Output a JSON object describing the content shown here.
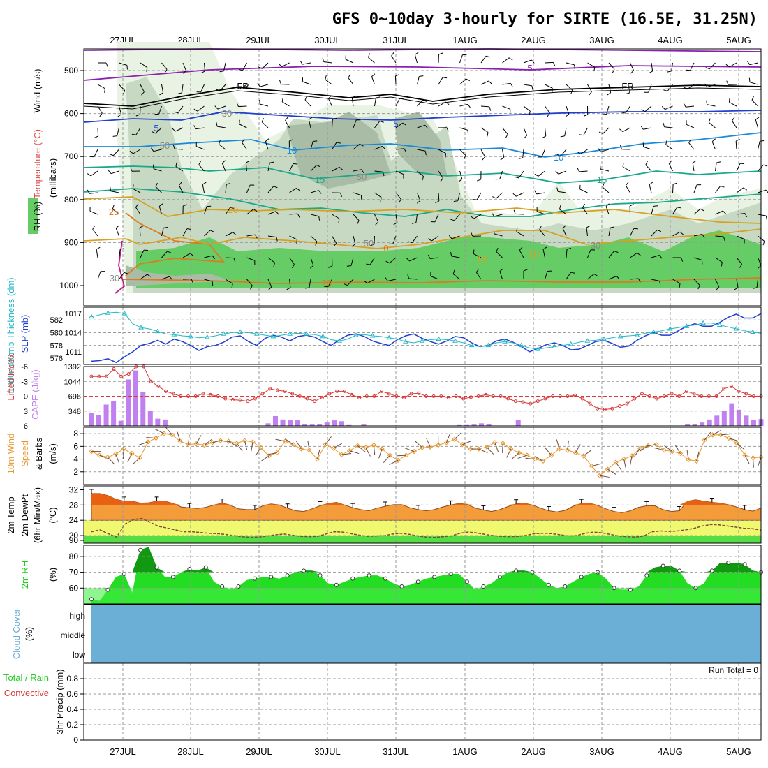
{
  "title": "GFS 0~10day 3-hourly for SIRTE (16.5E, 31.25N)",
  "dates": [
    "27JUL",
    "28JUL",
    "29JUL",
    "30JUL",
    "31JUL",
    "1AUG",
    "2AUG",
    "3AUG",
    "4AUG",
    "5AUG"
  ],
  "colors": {
    "frame": "#000000",
    "grid": "#999999",
    "rh_light": "#e8f3e3",
    "rh_mid": "#c7d9c2",
    "rh_dark": "#a9bca6",
    "rh_green": "#66cc66",
    "t_neg10": "#8a1fb0",
    "t_neg5": "#1f3fd0",
    "t_0": "#000000",
    "t_5": "#1a4fd8",
    "t_10": "#1a8ad8",
    "t_15": "#1aa88a",
    "t_20": "#d8a020",
    "t_25": "#e07820",
    "t_30": "#c01880",
    "slp": "#1f3fd0",
    "thickness": "#22b8c8",
    "lifted": "#d83a3a",
    "cape": "#c080f0",
    "wind": "#e89830",
    "temp_orange": "#f49c3a",
    "temp_dark": "#e86010",
    "yellow": "#f0f870",
    "rh2m_green": "#22dd22",
    "rh2m_dark": "#119911",
    "cloud": "#6baed6"
  },
  "panel1": {
    "label_wind": "Wind (m/s)",
    "label_temp": "Temperature (°C)",
    "label_rh": "RH (%)",
    "label_mb": "(millibars)",
    "yticks": [
      "500",
      "600",
      "700",
      "800",
      "900",
      "1000"
    ],
    "labels": [
      "5",
      "FR",
      "FR",
      "5",
      "5",
      "10",
      "10",
      "15",
      "15",
      "20",
      "25",
      "0",
      "10",
      "20",
      "10",
      "30",
      "30",
      "50",
      "50",
      "50",
      "30"
    ]
  },
  "panel2": {
    "label_thick": "1000-500mb Thickness (dm)",
    "label_slp": "SLP (mb)",
    "ticks_left": [
      "582",
      "580",
      "578",
      "576"
    ],
    "ticks_right": [
      "1017",
      "1014",
      "1011"
    ]
  },
  "panel3": {
    "label_li": "Lifted Index",
    "label_cape": "CAPE (J/kg)",
    "ticks_left": [
      "-6",
      "-3",
      "0",
      "3",
      "6"
    ],
    "ticks_right": [
      "1392",
      "1044",
      "696",
      "348"
    ]
  },
  "panel4": {
    "label_1": "10m Wind",
    "label_2": "Speed",
    "label_3": "& Barbs",
    "label_unit": "(m/s)",
    "ticks": [
      "8",
      "6",
      "4",
      "2"
    ]
  },
  "panel5": {
    "label_1": "2m Temp",
    "label_2": "2m DewPt",
    "label_3": "(6hr Min/Max)",
    "label_unit": "(°C)",
    "ticks": [
      "32",
      "28",
      "24",
      "20",
      "90"
    ]
  },
  "panel6": {
    "label": "2m RH",
    "label_unit": "(%)",
    "ticks": [
      "80",
      "70",
      "60"
    ]
  },
  "panel7": {
    "label": "Cloud Cover",
    "label_unit": "(%)",
    "levels": [
      "high",
      "middle",
      "low"
    ]
  },
  "panel8": {
    "label_1": "Total / Rain",
    "label_2": "Convective",
    "label_3": "3hr Precip (mm)",
    "ticks": [
      "0.8",
      "0.6",
      "0.4",
      "0.2",
      "0"
    ],
    "run_total": "Run Total = 0"
  },
  "chart_data": [
    {
      "type": "line",
      "name": "upper-air cross section",
      "ylabel": "(millibars)",
      "ylim": [
        1000,
        450
      ],
      "yticks": [
        500,
        600,
        700,
        800,
        900,
        1000
      ]
    },
    {
      "type": "line",
      "ylim_left": [
        575,
        584
      ],
      "ylim_right": [
        1009,
        1018
      ],
      "series": [
        {
          "name": "SLP (mb)",
          "values": [
            1009.5,
            1009.6,
            1009.9,
            1009.3,
            1010.2,
            1011.0,
            1012.0,
            1012.3,
            1012.8,
            1012.2,
            1013.0,
            1012.6,
            1012.0,
            1011.2,
            1011.8,
            1012.0,
            1012.5,
            1013.3,
            1013.5,
            1012.6,
            1012.0,
            1013.1,
            1013.6,
            1013.3,
            1012.7,
            1013.4,
            1013.6,
            1013.3,
            1012.6,
            1012.0,
            1012.9,
            1013.6,
            1013.8,
            1013.4,
            1012.7,
            1012.3,
            1012.0,
            1012.9,
            1013.5,
            1013.8,
            1013.1,
            1012.6,
            1012.2,
            1012.7,
            1013.4,
            1013.2,
            1012.4,
            1011.8,
            1012.0,
            1012.7,
            1013.0,
            1012.5,
            1011.8,
            1011.0,
            1011.5,
            1012.1,
            1012.4,
            1012.0,
            1011.3,
            1011.4,
            1012.0,
            1012.6,
            1012.8,
            1012.3,
            1011.7,
            1011.9,
            1012.8,
            1013.5,
            1014.0,
            1013.6,
            1013.6,
            1014.3,
            1015.0,
            1015.4,
            1015.0,
            1015.0,
            1015.6,
            1016.4,
            1016.9,
            1016.3,
            1016.3,
            1017.0
          ]
        },
        {
          "name": "1000-500mb Thickness (dm)",
          "values": [
            582.5,
            582.8,
            583.1,
            583.2,
            583.0,
            581.4,
            580.8,
            580.6,
            580.2,
            579.8,
            579.7,
            579.5,
            579.4,
            579.2,
            579.3,
            579.5,
            579.8,
            580.0,
            580.1,
            580.0,
            579.8,
            579.6,
            579.4,
            579.6,
            579.8,
            579.9,
            579.8,
            579.7,
            579.4,
            578.9,
            578.7,
            579.0,
            579.6,
            579.7,
            579.5,
            579.4,
            579.2,
            579.0,
            578.6,
            578.4,
            578.7,
            578.9,
            579.0,
            578.9,
            578.7,
            578.4,
            578.0,
            577.8,
            578.0,
            578.4,
            578.6,
            578.4,
            578.0,
            577.6,
            577.4,
            577.6,
            577.8,
            578.0,
            578.2,
            578.5,
            578.7,
            578.8,
            579.0,
            579.2,
            579.4,
            579.5,
            579.6,
            579.9,
            580.1,
            580.3,
            580.6,
            580.8,
            581.0,
            581.2,
            581.5,
            581.5,
            581.2,
            580.9,
            580.6,
            580.3,
            580.1,
            579.9
          ]
        }
      ]
    },
    {
      "type": "bar",
      "ylim_left": [
        -6,
        6
      ],
      "ylim_right": [
        0,
        1392
      ],
      "series": [
        {
          "name": "Lifted Index",
          "values": [
            -4,
            -4,
            -4,
            -5.5,
            -4,
            -4.5,
            -6,
            -6,
            -3,
            -2,
            -1,
            -0.5,
            0,
            0,
            0,
            -0.5,
            -0.3,
            0,
            0.5,
            0.7,
            0.8,
            1.0,
            0.5,
            -0.5,
            -1.5,
            -1.2,
            -1.0,
            -0.5,
            0,
            0.5,
            1.0,
            0.3,
            -0.5,
            -1,
            -1,
            -0.3,
            0.3,
            0,
            0,
            -1,
            -0.5,
            0,
            0.3,
            -0.5,
            -0.6,
            0,
            0,
            0,
            0.3,
            0,
            0.5,
            0.2,
            0,
            -0.3,
            0,
            0,
            0.5,
            1.0,
            1.2,
            1.5,
            1.0,
            0.5,
            0,
            0,
            0,
            -0.2,
            0.5,
            1.5,
            2.5,
            2.7,
            2.5,
            2.0,
            1.5,
            0.5,
            -0.5,
            0,
            0.5,
            0,
            -0.5,
            0,
            -1,
            -0.5,
            0,
            0,
            0,
            -1.5,
            -2,
            -1,
            -0.5,
            0,
            0
          ]
        },
        {
          "name": "CAPE (J/kg)",
          "values": [
            300,
            260,
            500,
            580,
            120,
            1090,
            1300,
            800,
            350,
            170,
            150,
            0,
            0,
            0,
            0,
            0,
            0,
            0,
            0,
            0,
            0,
            0,
            0,
            0,
            60,
            230,
            150,
            130,
            130,
            40,
            30,
            40,
            80,
            130,
            110,
            20,
            0,
            30,
            0,
            0,
            0,
            0,
            0,
            0,
            0,
            0,
            0,
            0,
            0,
            0,
            20,
            20,
            30,
            60,
            50,
            0,
            0,
            0,
            140,
            0,
            0,
            0,
            0,
            0,
            0,
            0,
            0,
            0,
            0,
            0,
            0,
            0,
            0,
            0,
            0,
            0,
            0,
            0,
            0,
            0,
            0,
            40,
            40,
            80,
            150,
            240,
            350,
            530,
            380,
            240,
            140,
            160
          ]
        }
      ]
    },
    {
      "type": "line",
      "name": "10m wind speed",
      "ylabel": "(m/s)",
      "ylim": [
        0,
        9
      ],
      "values": [
        5.2,
        4.6,
        4.3,
        4.8,
        5.6,
        4.9,
        4.2,
        6.7,
        7.3,
        8.0,
        7.8,
        6.8,
        6.3,
        6.4,
        6.2,
        6.6,
        6.9,
        6.8,
        6.5,
        6.9,
        6.7,
        5.8,
        4.5,
        5.0,
        6.8,
        6.3,
        5.6,
        5.4,
        4.0,
        6.3,
        5.7,
        4.7,
        5.3,
        6.1,
        5.8,
        6.2,
        5.6,
        4.6,
        3.8,
        4.6,
        5.2,
        5.8,
        5.9,
        6.2,
        6.6,
        7.1,
        6.3,
        5.6,
        5.6,
        5.9,
        6.6,
        6.5,
        5.6,
        5.0,
        4.6,
        4.0,
        3.7,
        4.6,
        5.6,
        5.4,
        5.0,
        4.5,
        2.9,
        1.4,
        2.4,
        3.5,
        4.0,
        4.5,
        5.7,
        6.1,
        6.3,
        5.4,
        5.2,
        4.9,
        3.9,
        3.7,
        7.0,
        7.8,
        7.8,
        7.3,
        6.5,
        4.6,
        4.2,
        4.3
      ]
    },
    {
      "type": "area",
      "name": "2m temperature and dew point",
      "ylabel": "(°C)",
      "ylim": [
        18,
        33
      ],
      "series": [
        {
          "name": "2m Temp",
          "values": [
            31,
            31,
            30.5,
            29.5,
            29.0,
            29,
            28.5,
            28.6,
            29.0,
            29.0,
            28.4,
            27.5,
            27.3,
            27.1,
            27.4,
            28.0,
            28.5,
            28.0,
            27.0,
            26.8,
            26.8,
            27.8,
            28.3,
            28.0,
            27.2,
            26.5,
            26.3,
            27.0,
            27.8,
            28.4,
            28.7,
            28.0,
            27.3,
            26.8,
            26.5,
            27.2,
            27.7,
            28.1,
            28.1,
            27.3,
            26.8,
            26.5,
            26.8,
            27.5,
            28.0,
            28.4,
            28.2,
            27.2,
            26.7,
            26.3,
            26.8,
            27.6,
            28.3,
            28.5,
            28.0,
            27.2,
            26.5,
            26.2,
            26.6,
            27.7,
            28.4,
            28.5,
            27.9,
            27.0,
            26.3,
            26.0,
            26.5,
            27.4,
            27.8,
            27.8,
            26.8,
            26.3,
            26.5,
            29.0,
            29.4,
            29.0,
            28.7,
            28.5,
            28.1,
            27.5,
            26.8,
            26.4,
            27.2
          ]
        },
        {
          "name": "2m DewPt",
          "values": [
            21,
            21.5,
            20.5,
            19.6,
            23,
            24.2,
            24.5,
            23.5,
            22.4,
            22,
            21.5,
            21.0,
            21.0,
            20.8,
            20.6,
            20.5,
            20.3,
            20.0,
            19.7,
            19.5,
            19.6,
            19.9,
            20.2,
            20.4,
            20.1,
            19.8,
            19.7,
            19.8,
            20.4,
            21.0,
            20.9,
            20.5,
            20.1,
            19.8,
            19.9,
            20.0,
            20.4,
            20.6,
            20.3,
            19.9,
            19.6,
            19.5,
            19.7,
            19.9,
            20.6,
            20.9,
            20.7,
            20.3,
            20.0,
            19.8,
            19.7,
            19.8,
            20.1,
            20.5,
            20.6,
            20.5,
            20.2,
            19.9,
            20.0,
            20.6,
            20.9,
            20.7,
            20.3,
            19.9,
            19.7,
            19.6,
            19.9,
            21.0,
            21.2,
            21.1,
            21.2,
            21.5,
            21.9,
            22.5,
            22.9,
            22.8,
            22.5,
            22.2,
            21.9,
            21.8,
            21.4
          ]
        }
      ]
    },
    {
      "type": "area",
      "name": "2m RH",
      "ylabel": "(%)",
      "ylim": [
        50,
        87
      ],
      "values": [
        53,
        52,
        59,
        67,
        69,
        57,
        84,
        86,
        73,
        67,
        67,
        70,
        72,
        71,
        73,
        64,
        61,
        59,
        61,
        65,
        66,
        67,
        67,
        66,
        68,
        70,
        71,
        71,
        68,
        63,
        62,
        64,
        66,
        67,
        68,
        68,
        66,
        63,
        61,
        62,
        64,
        66,
        67,
        68,
        69,
        69,
        64,
        59,
        61,
        63,
        67,
        70,
        71,
        71,
        70,
        66,
        62,
        60,
        61,
        64,
        67,
        69,
        70,
        66,
        60,
        59,
        59,
        61,
        68,
        73,
        74,
        74,
        71,
        63,
        60,
        63,
        71,
        76,
        76,
        76,
        75,
        71,
        70
      ]
    },
    {
      "type": "area",
      "name": "Cloud Cover",
      "categories": [
        "high",
        "middle",
        "low"
      ],
      "values": [
        100,
        100,
        100
      ]
    },
    {
      "type": "bar",
      "name": "3hr Precip",
      "ylabel": "3hr Precip (mm)",
      "ylim": [
        0,
        1
      ],
      "values": []
    }
  ]
}
